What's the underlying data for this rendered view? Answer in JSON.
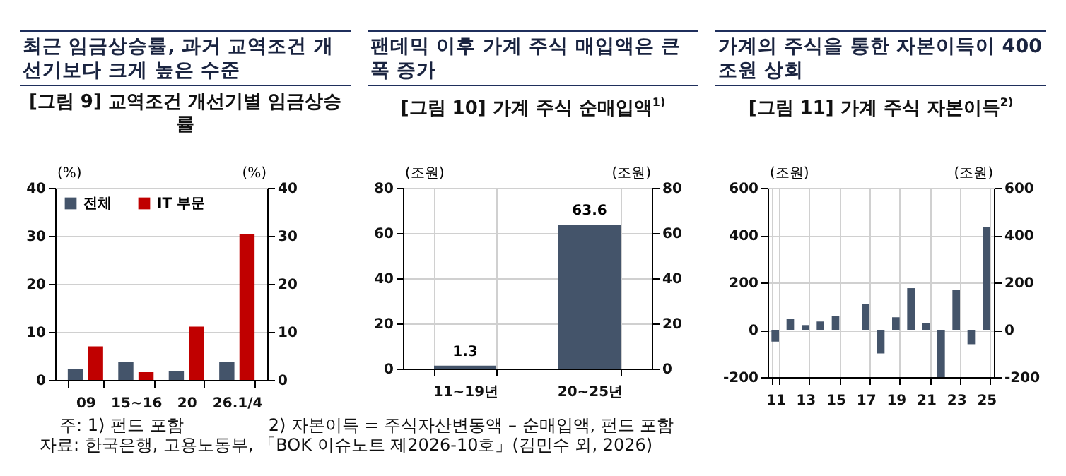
{
  "chart_data": [
    {
      "type": "bar",
      "title": "최근 임금상승률, 과거 교역조건 개선기보다 크게 높은 수준",
      "subtitle": "[그림 9] 교역조건 개선기별 임금상승률",
      "categories": [
        "09",
        "15~16",
        "20",
        "26.1/4"
      ],
      "series": [
        {
          "name": "전체",
          "color": "#44546a",
          "values": [
            2.3,
            3.8,
            1.9,
            3.8
          ]
        },
        {
          "name": "IT 부문",
          "color": "#c00000",
          "values": [
            7.0,
            1.6,
            11.1,
            30.4
          ]
        }
      ],
      "ylabel": "(%)",
      "y2label": "(%)",
      "ylim": [
        0,
        40
      ],
      "yticks": [
        0,
        10,
        20,
        30,
        40
      ],
      "y2lim": [
        0,
        40
      ],
      "y2ticks": [
        0,
        10,
        20,
        30,
        40
      ],
      "grid": "y",
      "legend": "top left",
      "annotations": [
        "주: 1) 펀드 포함",
        "2) 자본이득 = 주식자산변동액 – 순매입액, 펀드 포함",
        "자료: 한국은행, 고용노동부, 「BOK 이슈노트 제2026-10호」(김민수 외, 2026)"
      ]
    },
    {
      "type": "bar",
      "title": "팬데믹 이후 가계 주식 매입액은 큰 폭 증가",
      "subtitle": "[그림 10] 가계 주식 순매입액$^{1)}$",
      "categories": [
        "11~19년",
        "20~25년"
      ],
      "values": [
        1.3,
        63.6
      ],
      "color": "#44546a",
      "ylabel": "(조원)",
      "y2label": "(조원)",
      "ylim": [
        0,
        80
      ],
      "yticks": [
        0,
        20,
        40,
        60,
        80
      ],
      "y2lim": [
        0,
        80
      ],
      "y2ticks": [
        0,
        20,
        40,
        60,
        80
      ],
      "grid": true,
      "data_labels": true
    },
    {
      "type": "bar",
      "title": "가계의 주식을 통한 자본이득이 400조원 상회",
      "subtitle": "[그림 11] 가계 주식 자본이득$^{2)}$",
      "categories": [
        "11",
        null,
        "13",
        null,
        "15",
        null,
        "17",
        null,
        "19",
        null,
        "21",
        null,
        "23",
        null,
        "25"
      ],
      "values": [
        -50,
        47,
        20,
        35,
        59,
        null,
        110,
        -100,
        53,
        176,
        29,
        -200,
        169,
        -61,
        433
      ],
      "color": "#44546a",
      "ylabel": "(조원)",
      "y2label": "(조원)",
      "ylim": [
        -200,
        600
      ],
      "yticks": [
        -200,
        0,
        200,
        400,
        600
      ],
      "y2lim": [
        -200,
        600
      ],
      "y2ticks": [
        -200,
        0,
        200,
        400,
        600
      ],
      "grid": true
    }
  ]
}
